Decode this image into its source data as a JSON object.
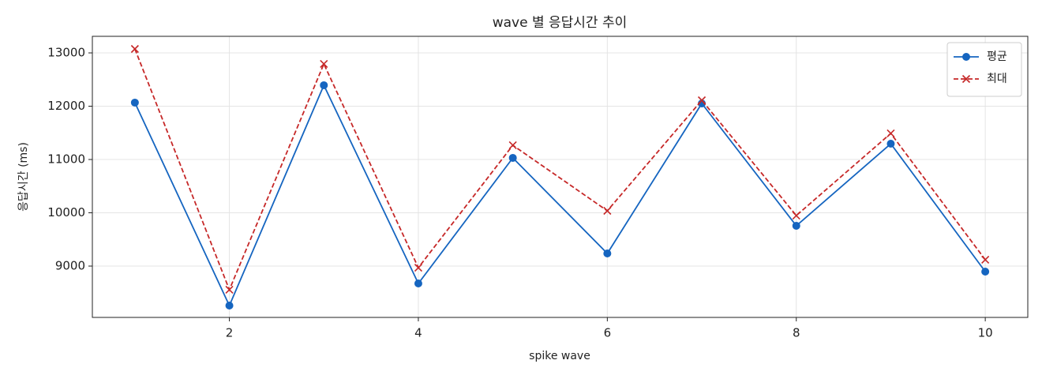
{
  "chart_data": {
    "type": "line",
    "title": "wave 별 응답시간 추이",
    "x_label": "spike wave",
    "y_label": "응답시간 (ms)",
    "x": [
      1,
      2,
      3,
      4,
      5,
      6,
      7,
      8,
      9,
      10
    ],
    "series": [
      {
        "name": "평균",
        "color": "#1565c0",
        "marker": "circle",
        "dash": false,
        "values": [
          12067,
          8259,
          12393,
          8674,
          11030,
          9237,
          12052,
          9756,
          11296,
          8896
        ]
      },
      {
        "name": "최대",
        "color": "#c62828",
        "marker": "x",
        "dash": true,
        "values": [
          13074,
          8556,
          12793,
          8970,
          11267,
          10037,
          12111,
          9948,
          11489,
          9119
        ]
      }
    ],
    "xlim": [
      0.55,
      10.45
    ],
    "xticks": [
      2,
      4,
      6,
      8,
      10
    ],
    "ylim": [
      8037,
      13311
    ],
    "yticks": [
      9000,
      10000,
      11000,
      12000,
      13000
    ],
    "grid": true,
    "legend": "upper-right"
  }
}
